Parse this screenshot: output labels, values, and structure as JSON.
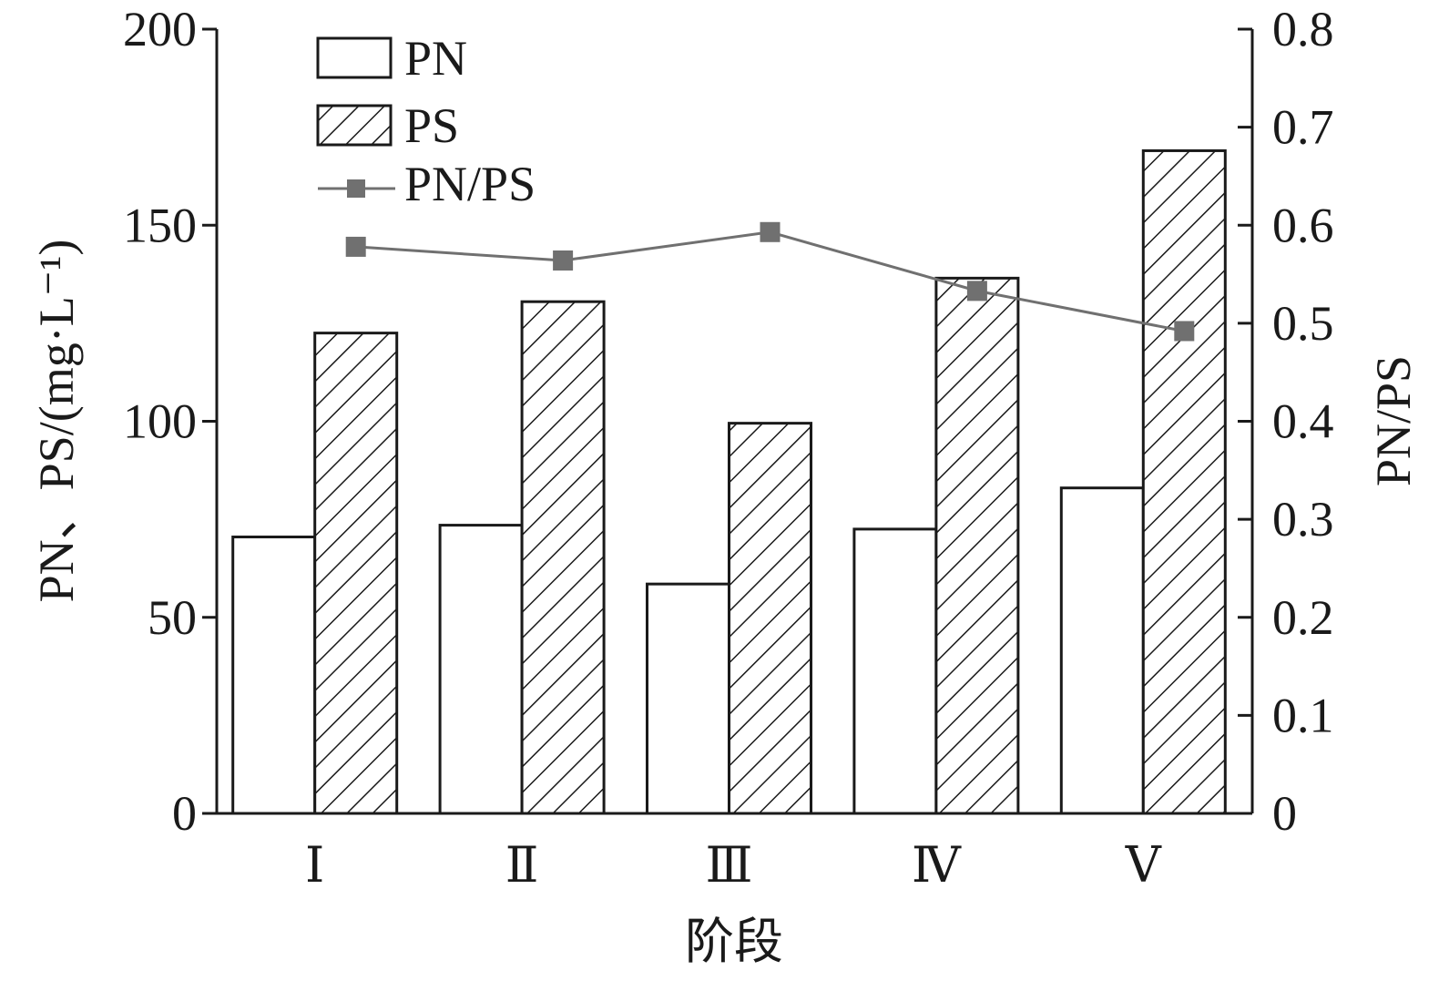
{
  "chart_data": {
    "type": "bar",
    "xlabel": "阶段",
    "ylabel": "PN、PS/(mg·L⁻¹)",
    "y2label": "PN/PS",
    "categories": [
      "Ⅰ",
      "Ⅱ",
      "Ⅲ",
      "Ⅳ",
      "Ⅴ"
    ],
    "ylim": [
      0,
      200
    ],
    "y2lim": [
      0,
      0.8
    ],
    "yticks": [
      "0",
      "50",
      "100",
      "150",
      "200"
    ],
    "y2ticks": [
      "0",
      "0.1",
      "0.2",
      "0.3",
      "0.4",
      "0.5",
      "0.6",
      "0.7",
      "0.8"
    ],
    "series": [
      {
        "name": "PN",
        "type": "bar",
        "pattern": "none",
        "values": [
          70.5,
          73.5,
          58.5,
          72.5,
          83
        ]
      },
      {
        "name": "PS",
        "type": "bar",
        "pattern": "hatch",
        "values": [
          122.5,
          130.5,
          99.5,
          136.5,
          169
        ]
      },
      {
        "name": "PN/PS",
        "type": "line",
        "axis": "right",
        "marker": "square",
        "color": "#707070",
        "values": [
          0.578,
          0.564,
          0.593,
          0.533,
          0.492
        ]
      }
    ],
    "legend": "top-left",
    "grid": false
  }
}
